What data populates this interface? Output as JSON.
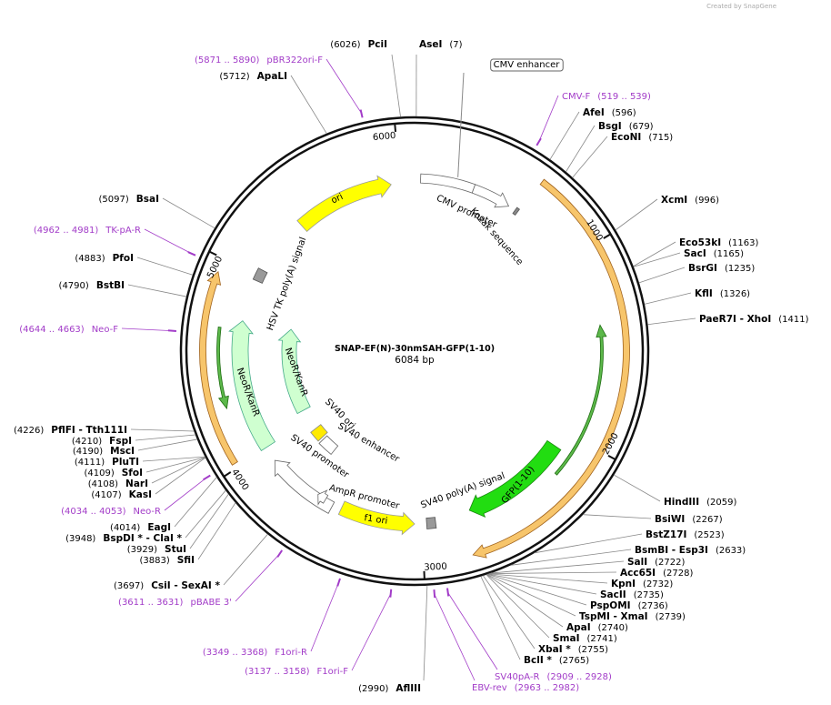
{
  "credit": "Created by SnapGene",
  "map": {
    "name": "SNAP-EF(N)-30nmSAH-GFP(1-10)",
    "length": "6084 bp",
    "ticks": [
      "1000",
      "2000",
      "3000",
      "4000",
      "5000",
      "6000"
    ]
  },
  "enzymes": [
    {
      "name": "PciI",
      "position": "(6026)"
    },
    {
      "name": "AseI",
      "position": "(7)"
    },
    {
      "name": "ApaLI",
      "position": "(5712)"
    },
    {
      "name": "AfeI",
      "position": "(596)"
    },
    {
      "name": "BsgI",
      "position": "(679)"
    },
    {
      "name": "EcoNI",
      "position": "(715)"
    },
    {
      "name": "XcmI",
      "position": "(996)"
    },
    {
      "name": "Eco53kI",
      "position": "(1163)"
    },
    {
      "name": "SacI",
      "position": "(1165)"
    },
    {
      "name": "BsrGI",
      "position": "(1235)"
    },
    {
      "name": "KflI",
      "position": "(1326)"
    },
    {
      "name": "PaeR7I - XhoI",
      "position": "(1411)"
    },
    {
      "name": "HindIII",
      "position": "(2059)"
    },
    {
      "name": "BsiWI",
      "position": "(2267)"
    },
    {
      "name": "BstZ17I",
      "position": "(2523)"
    },
    {
      "name": "BsmBI - Esp3I",
      "position": "(2633)"
    },
    {
      "name": "SalI",
      "position": "(2722)"
    },
    {
      "name": "Acc65I",
      "position": "(2728)"
    },
    {
      "name": "KpnI",
      "position": "(2732)"
    },
    {
      "name": "SacII",
      "position": "(2735)"
    },
    {
      "name": "PspOMI",
      "position": "(2736)"
    },
    {
      "name": "TspMI - XmaI",
      "position": "(2739)"
    },
    {
      "name": "ApaI",
      "position": "(2740)"
    },
    {
      "name": "SmaI",
      "position": "(2741)"
    },
    {
      "name": "XbaI *",
      "position": "(2755)"
    },
    {
      "name": "BclI *",
      "position": "(2765)"
    },
    {
      "name": "AflIII",
      "position": "(2990)"
    },
    {
      "name": "CsiI - SexAI *",
      "position": "(3697)"
    },
    {
      "name": "SfiI",
      "position": "(3883)"
    },
    {
      "name": "StuI",
      "position": "(3929)"
    },
    {
      "name": "BspDI * - ClaI *",
      "position": "(3948)"
    },
    {
      "name": "EagI",
      "position": "(4014)"
    },
    {
      "name": "KasI",
      "position": "(4107)"
    },
    {
      "name": "NarI",
      "position": "(4108)"
    },
    {
      "name": "SfoI",
      "position": "(4109)"
    },
    {
      "name": "PluTI",
      "position": "(4111)"
    },
    {
      "name": "MscI",
      "position": "(4190)"
    },
    {
      "name": "FspI",
      "position": "(4210)"
    },
    {
      "name": "PflFI - Tth111I",
      "position": "(4226)"
    },
    {
      "name": "BstBI",
      "position": "(4790)"
    },
    {
      "name": "PfoI",
      "position": "(4883)"
    },
    {
      "name": "BsaI",
      "position": "(5097)"
    }
  ],
  "primers": [
    {
      "name": "pBR322ori-F",
      "range": "(5871 .. 5890)"
    },
    {
      "name": "CMV-F",
      "range": "(519 .. 539)"
    },
    {
      "name": "TK-pA-R",
      "range": "(4962 .. 4981)"
    },
    {
      "name": "Neo-F",
      "range": "(4644 .. 4663)"
    },
    {
      "name": "Neo-R",
      "range": "(4034 .. 4053)"
    },
    {
      "name": "pBABE 3'",
      "range": "(3611 .. 3631)"
    },
    {
      "name": "F1ori-R",
      "range": "(3349 .. 3368)"
    },
    {
      "name": "F1ori-F",
      "range": "(3137 .. 3158)"
    },
    {
      "name": "SV40pA-R",
      "range": "(2909 .. 2928)"
    },
    {
      "name": "EBV-rev",
      "range": "(2963 .. 2982)"
    }
  ],
  "features": [
    {
      "label": "CMV enhancer"
    },
    {
      "label": "CMV promoter"
    },
    {
      "label": "Kozak sequence"
    },
    {
      "label": "ori"
    },
    {
      "label": "HSV TK poly(A) signal"
    },
    {
      "label": "NeoR/KanR"
    },
    {
      "label": "NeoR/KanR"
    },
    {
      "label": "SV40 ori"
    },
    {
      "label": "SV40 enhancer"
    },
    {
      "label": "SV40 promoter"
    },
    {
      "label": "AmpR promoter"
    },
    {
      "label": "f1 ori"
    },
    {
      "label": "SV40 poly(A) signal"
    },
    {
      "label": "GFP(1-10)"
    }
  ]
}
